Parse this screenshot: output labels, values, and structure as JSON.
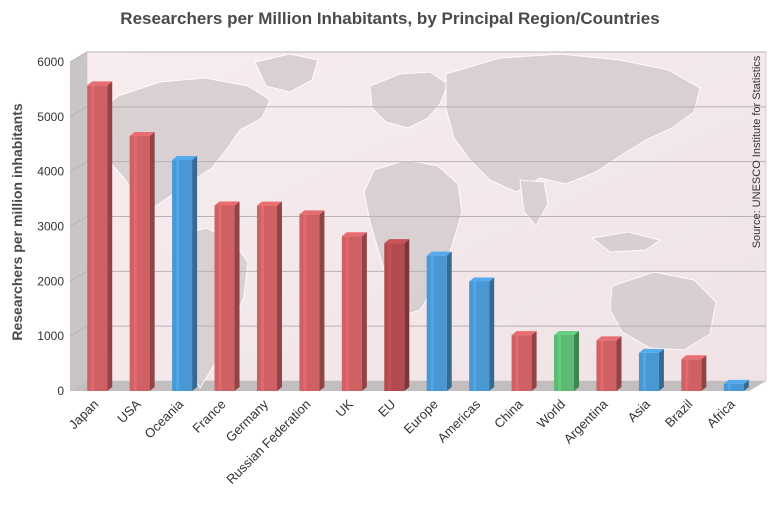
{
  "chart_data": {
    "type": "bar",
    "title": "Researchers per Million Inhabitants, by Principal Region/Countries",
    "ylabel": "Researchers per million inhabitants",
    "xlabel": "",
    "ylim": [
      0,
      6000
    ],
    "yticks": [
      "0",
      "1000",
      "2000",
      "3000",
      "4000",
      "5000",
      "6000"
    ],
    "ytick_values": [
      0,
      1000,
      2000,
      3000,
      4000,
      5000,
      6000
    ],
    "grid": true,
    "source_note": "Source: UNESCO Institute for Statistics",
    "categories": [
      "Japan",
      "USA",
      "Oceania",
      "France",
      "Germany",
      "Russian Federation",
      "UK",
      "EU",
      "Europe",
      "Americas",
      "China",
      "World",
      "Argentina",
      "Asia",
      "Brazil",
      "Africa"
    ],
    "values": [
      5573,
      4651,
      4212,
      3384,
      3381,
      3220,
      2823,
      2697,
      2468,
      1998,
      1019,
      1022,
      923,
      696,
      579,
      131
    ],
    "bar_groups": [
      "country",
      "country",
      "region",
      "country",
      "country",
      "country",
      "country",
      "region-dark",
      "region",
      "region",
      "country",
      "world",
      "country",
      "region",
      "country",
      "region"
    ],
    "colors": {
      "country": "#cf6064",
      "region-dark": "#b34a50",
      "region": "#4a98d3",
      "world": "#5cba74",
      "background": "#f4e8ea",
      "map": "#d4ccce",
      "title": "#4a4a4a"
    }
  }
}
